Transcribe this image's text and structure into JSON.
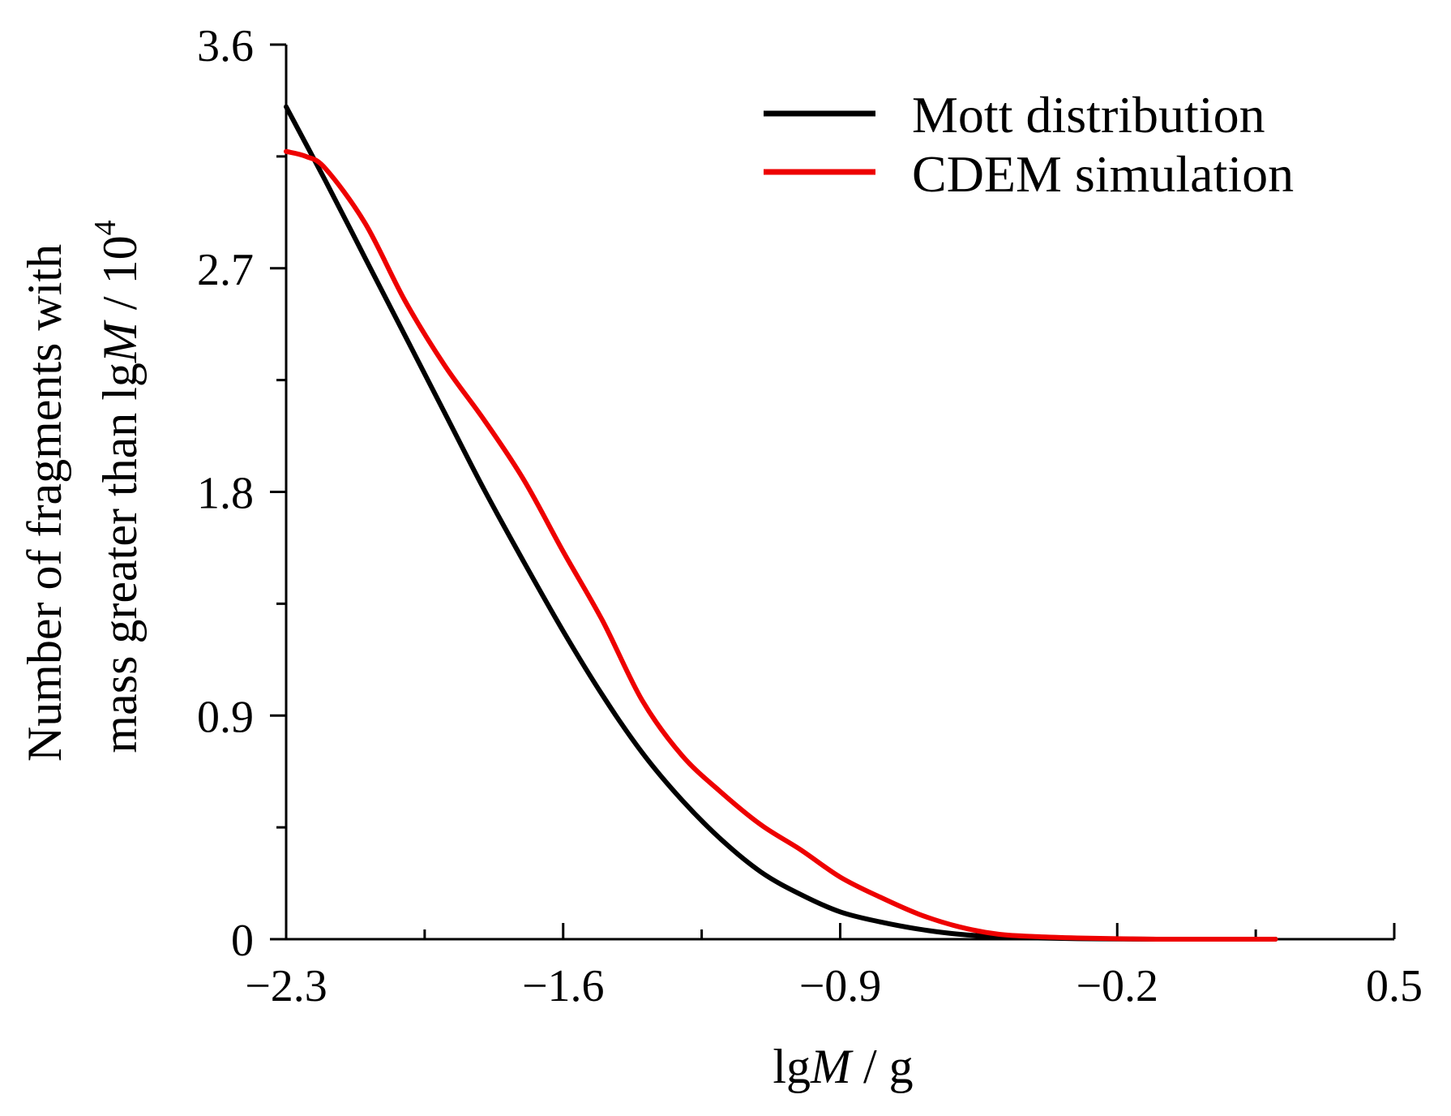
{
  "chart_data": {
    "type": "line",
    "title": "",
    "xlabel": {
      "prefix": "lg",
      "variable": "M",
      "suffix": " / g"
    },
    "ylabel": {
      "line1": "Number of fragments with",
      "line2_prefix": "mass greater than lg",
      "line2_variable": "M",
      "line2_suffix": " / 10",
      "line2_exponent": "4"
    },
    "xlim": [
      -2.3,
      0.5
    ],
    "ylim": [
      0,
      3.6
    ],
    "x_major_ticks": [
      -2.3,
      -1.6,
      -0.9,
      -0.2,
      0.5
    ],
    "x_tick_labels": [
      "−2.3",
      "−1.6",
      "−0.9",
      "−0.2",
      "0.5"
    ],
    "x_minor_ticks": [
      -1.95,
      -1.25,
      -0.55,
      0.15
    ],
    "y_major_ticks": [
      0,
      0.9,
      1.8,
      2.7,
      3.6
    ],
    "y_tick_labels": [
      "0",
      "0.9",
      "1.8",
      "2.7",
      "3.6"
    ],
    "y_minor_ticks": [
      0.45,
      1.35,
      2.25,
      3.15
    ],
    "grid": false,
    "legend_position": "top-right",
    "series": [
      {
        "name": "Mott distribution",
        "color": "#000000",
        "x": [
          -2.3,
          -2.2,
          -2.1,
          -2.0,
          -1.9,
          -1.8,
          -1.7,
          -1.6,
          -1.5,
          -1.4,
          -1.3,
          -1.2,
          -1.1,
          -1.0,
          -0.9,
          -0.8,
          -0.7,
          -0.6,
          -0.5,
          -0.4,
          -0.3,
          -0.2,
          -0.1,
          0.0,
          0.1,
          0.2
        ],
        "y": [
          3.35,
          3.05,
          2.74,
          2.43,
          2.12,
          1.81,
          1.52,
          1.24,
          0.98,
          0.75,
          0.56,
          0.4,
          0.27,
          0.18,
          0.11,
          0.07,
          0.04,
          0.02,
          0.01,
          0.005,
          0.002,
          0.001,
          0.0,
          0.0,
          0.0,
          0.0
        ]
      },
      {
        "name": "CDEM simulation",
        "color": "#ee0000",
        "x": [
          -2.3,
          -2.25,
          -2.2,
          -2.1,
          -2.0,
          -1.9,
          -1.8,
          -1.7,
          -1.6,
          -1.5,
          -1.4,
          -1.3,
          -1.2,
          -1.1,
          -1.0,
          -0.9,
          -0.8,
          -0.7,
          -0.6,
          -0.5,
          -0.4,
          -0.3,
          -0.2,
          -0.1,
          0.0,
          0.1,
          0.2
        ],
        "y": [
          3.17,
          3.15,
          3.1,
          2.88,
          2.57,
          2.31,
          2.09,
          1.85,
          1.56,
          1.28,
          0.96,
          0.74,
          0.59,
          0.46,
          0.36,
          0.25,
          0.17,
          0.1,
          0.05,
          0.02,
          0.01,
          0.005,
          0.002,
          0.0,
          0.0,
          0.0,
          0.0
        ]
      }
    ]
  }
}
